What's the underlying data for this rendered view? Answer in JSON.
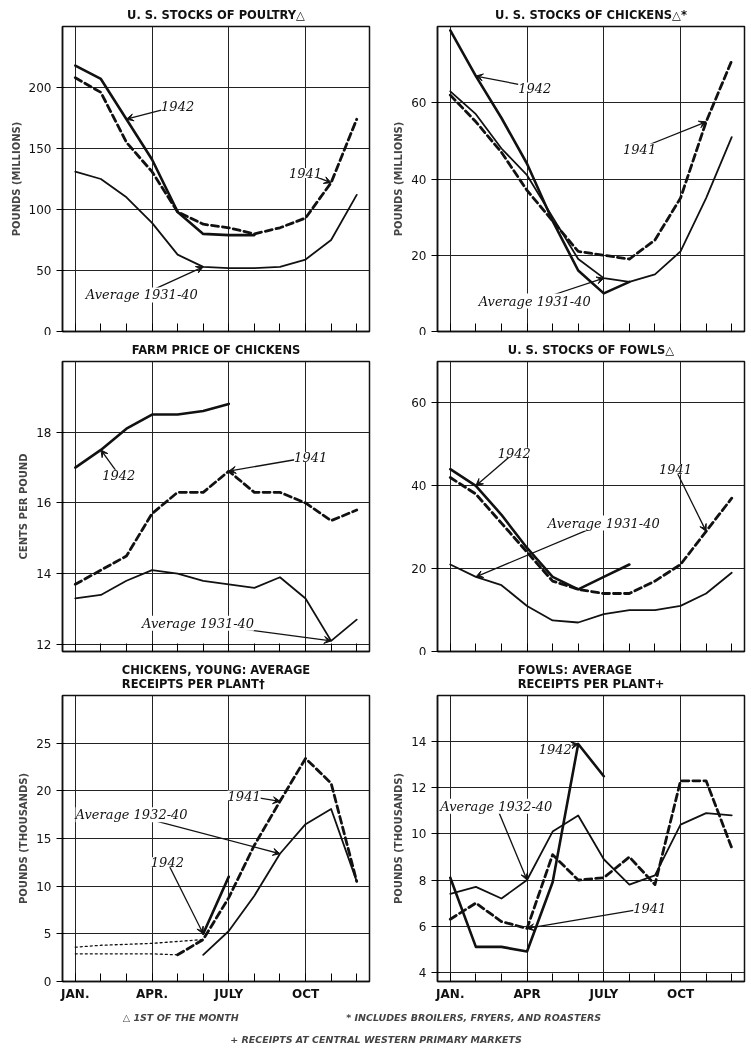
{
  "chart_data": [
    {
      "type": "line",
      "title": "U. S. STOCKS OF POULTRY△",
      "ylabel": "POUNDS (MILLIONS)",
      "categories": [
        null,
        null,
        null,
        null,
        null,
        null,
        null,
        null,
        null,
        null,
        null,
        null
      ],
      "ylim": [
        0,
        250
      ],
      "yticks": [
        0,
        50,
        100,
        150,
        200
      ],
      "grid": true,
      "tick_labels": "y",
      "series": [
        {
          "name": "1942",
          "color": "#111111",
          "line_style": "solid",
          "values": [
            218,
            207,
            174,
            141,
            98,
            80,
            79,
            79,
            null,
            null,
            null,
            null
          ]
        },
        {
          "name": "1941",
          "color": "#111111",
          "line_style": "dashed",
          "values": [
            208,
            196,
            155,
            131,
            98,
            88,
            85,
            80,
            85,
            93,
            122,
            174
          ]
        },
        {
          "name": "Average 1931-40",
          "color": "#111111",
          "line_style": "solid",
          "values": [
            131,
            125,
            110,
            89,
            63,
            53,
            52,
            52,
            53,
            59,
            75,
            112
          ]
        }
      ]
    },
    {
      "type": "line",
      "title": "U. S. STOCKS OF CHICKENS△*",
      "ylabel": "POUNDS (MILLIONS)",
      "categories": [
        null,
        null,
        null,
        null,
        null,
        null,
        null,
        null,
        null,
        null,
        null,
        null
      ],
      "ylim": [
        0,
        80
      ],
      "yticks": [
        0,
        20,
        40,
        60
      ],
      "grid": true,
      "tick_labels": "y",
      "series": [
        {
          "name": "1942",
          "color": "#111111",
          "line_style": "solid",
          "values": [
            79,
            67,
            56,
            44,
            29,
            16,
            10,
            13,
            null,
            null,
            null,
            null
          ]
        },
        {
          "name": "1941",
          "color": "#111111",
          "line_style": "dashed",
          "values": [
            62,
            55,
            47,
            37,
            29,
            21,
            20,
            19,
            24,
            35,
            55,
            71
          ]
        },
        {
          "name": "Average 1931-40",
          "color": "#111111",
          "line_style": "solid",
          "values": [
            63,
            57,
            48,
            41,
            30,
            19,
            14,
            13,
            15,
            21,
            35,
            51
          ]
        }
      ]
    },
    {
      "type": "line",
      "title": "FARM PRICE OF CHICKENS",
      "ylabel": "CENTS PER POUND",
      "categories": [
        null,
        null,
        null,
        null,
        null,
        null,
        null,
        null,
        null,
        null,
        null,
        null
      ],
      "ylim": [
        11.8,
        20
      ],
      "yticks": [
        12,
        14,
        16,
        18
      ],
      "grid": true,
      "tick_labels": "y",
      "series": [
        {
          "name": "1942",
          "color": "#111111",
          "line_style": "solid",
          "values": [
            17.0,
            17.5,
            18.1,
            18.5,
            18.5,
            18.6,
            18.8,
            null,
            null,
            null,
            null,
            null
          ]
        },
        {
          "name": "1941",
          "color": "#111111",
          "line_style": "dashed",
          "values": [
            13.7,
            14.1,
            14.5,
            15.7,
            16.3,
            16.3,
            16.9,
            16.3,
            16.3,
            16.0,
            15.5,
            15.8
          ]
        },
        {
          "name": "Average 1931-40",
          "color": "#111111",
          "line_style": "solid",
          "values": [
            13.3,
            13.4,
            13.8,
            14.1,
            14.0,
            13.8,
            13.7,
            13.6,
            13.9,
            13.3,
            12.1,
            12.7
          ]
        }
      ]
    },
    {
      "type": "line",
      "title": "U. S. STOCKS OF FOWLS△",
      "categories": [
        null,
        null,
        null,
        null,
        null,
        null,
        null,
        null,
        null,
        null,
        null,
        null
      ],
      "ylim": [
        0,
        70
      ],
      "yticks": [
        0,
        20,
        40,
        60
      ],
      "grid": true,
      "tick_labels": "y",
      "series": [
        {
          "name": "1942",
          "color": "#111111",
          "line_style": "solid",
          "values": [
            44,
            40,
            33,
            25,
            18,
            15,
            18,
            21,
            null,
            null,
            null,
            null
          ]
        },
        {
          "name": "1941",
          "color": "#111111",
          "line_style": "dashed",
          "values": [
            42,
            38,
            31,
            24,
            17,
            15,
            14,
            14,
            17,
            21,
            29,
            37
          ]
        },
        {
          "name": "Average 1931-40",
          "color": "#111111",
          "line_style": "solid",
          "values": [
            21,
            18,
            16,
            11,
            7.5,
            7,
            9,
            10,
            10,
            11,
            14,
            19
          ]
        }
      ]
    },
    {
      "type": "line",
      "title": "CHICKENS, YOUNG: AVERAGE RECEIPTS PER PLANT†",
      "ylabel": "POUNDS (THOUSANDS)",
      "categories": [
        "JAN.",
        null,
        null,
        "APR.",
        null,
        null,
        "JULY",
        null,
        null,
        "OCT",
        null,
        null
      ],
      "ylim": [
        0,
        30
      ],
      "yticks": [
        0,
        5,
        10,
        15,
        20,
        25
      ],
      "grid": true,
      "annotations": [
        "△ 1ST OF THE MONTH",
        "* INCLUDES BROILERS, FRYERS, AND ROASTERS",
        "+ RECEIPTS AT CENTRAL WESTERN PRIMARY MARKETS"
      ],
      "series": [
        {
          "name": "1942",
          "color": "#111111",
          "line_style": "solid",
          "values": [
            null,
            null,
            null,
            null,
            null,
            5.0,
            11.0,
            null,
            null,
            null,
            null,
            null
          ]
        },
        {
          "name": "1941",
          "color": "#111111",
          "line_style": "dashed",
          "values": [
            null,
            null,
            null,
            null,
            2.8,
            4.4,
            8.8,
            14.3,
            18.9,
            23.4,
            20.8,
            10.5
          ]
        },
        {
          "name": "Average 1932-40",
          "color": "#111111",
          "line_style": "solid",
          "values": [
            null,
            null,
            null,
            null,
            null,
            2.8,
            5.3,
            9,
            13.4,
            16.5,
            18.1,
            10.5
          ]
        },
        {
          "color": "#111111",
          "line_style": "dotted",
          "values": [
            3.6,
            3.8,
            3.9,
            4.0,
            4.2,
            4.4,
            null,
            null,
            null,
            null,
            null,
            null
          ]
        },
        {
          "color": "#111111",
          "line_style": "dotted",
          "values": [
            2.9,
            2.9,
            2.9,
            2.9,
            2.8,
            null,
            null,
            null,
            null,
            null,
            null,
            null
          ]
        }
      ]
    },
    {
      "type": "line",
      "title": "FOWLS: AVERAGE RECEIPTS PER PLANT+",
      "ylabel": "POUNDS (THOUSANDS)",
      "categories": [
        "JAN.",
        null,
        null,
        "APR",
        null,
        null,
        "JULY",
        null,
        null,
        "OCT",
        null,
        null
      ],
      "ylim": [
        3.6,
        16
      ],
      "yticks": [
        4,
        6,
        8,
        10,
        12,
        14
      ],
      "grid": true,
      "series": [
        {
          "name": "1942",
          "color": "#111111",
          "line_style": "solid",
          "values": [
            8.1,
            5.1,
            5.1,
            4.9,
            7.9,
            13.9,
            12.5,
            null,
            null,
            null,
            null,
            null
          ]
        },
        {
          "name": "1941",
          "color": "#111111",
          "line_style": "dashed",
          "values": [
            6.3,
            7.0,
            6.2,
            5.9,
            9.1,
            8.0,
            8.1,
            9.0,
            7.8,
            12.3,
            12.3,
            9.4
          ]
        },
        {
          "name": "Average 1932-40",
          "color": "#111111",
          "line_style": "solid",
          "values": [
            7.4,
            7.7,
            7.2,
            8.0,
            10.1,
            10.8,
            8.9,
            7.8,
            8.2,
            10.4,
            10.9,
            10.8
          ]
        }
      ]
    }
  ]
}
